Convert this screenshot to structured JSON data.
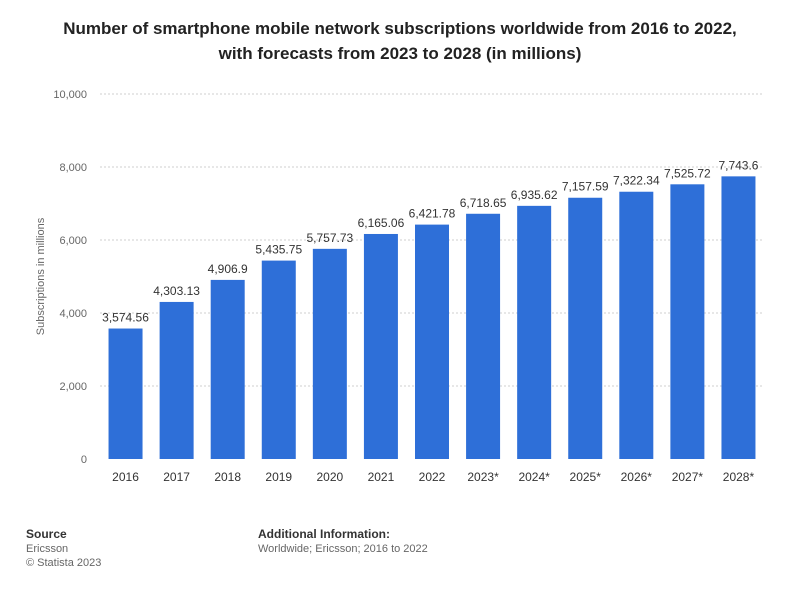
{
  "title_line1": "Number of smartphone mobile network subscriptions worldwide from 2016 to 2022,",
  "title_line2": "with forecasts from 2023 to 2028 (in millions)",
  "chart_data": {
    "type": "bar",
    "title": "Number of smartphone mobile network subscriptions worldwide from 2016 to 2022, with forecasts from 2023 to 2028 (in millions)",
    "categories": [
      "2016",
      "2017",
      "2018",
      "2019",
      "2020",
      "2021",
      "2022",
      "2023*",
      "2024*",
      "2025*",
      "2026*",
      "2027*",
      "2028*"
    ],
    "values": [
      3574.56,
      4303.13,
      4906.9,
      5435.75,
      5757.73,
      6165.06,
      6421.78,
      6718.65,
      6935.62,
      7157.59,
      7322.34,
      7525.72,
      7743.6
    ],
    "value_labels": [
      "3,574.56",
      "4,303.13",
      "4,906.9",
      "5,435.75",
      "5,757.73",
      "6,165.06",
      "6,421.78",
      "6,718.65",
      "6,935.62",
      "7,157.59",
      "7,322.34",
      "7,525.72",
      "7,743.6"
    ],
    "xlabel": "",
    "ylabel": "Subscriptions in millions",
    "ylim": [
      0,
      10000
    ],
    "yticks": [
      0,
      2000,
      4000,
      6000,
      8000,
      10000
    ],
    "ytick_labels": [
      "0",
      "2,000",
      "4,000",
      "6,000",
      "8,000",
      "10,000"
    ],
    "grid": true,
    "bar_color": "#2e6fd8"
  },
  "footer": {
    "source_heading": "Source",
    "source_name": "Ericsson",
    "copyright": "© Statista 2023",
    "additional_heading": "Additional Information:",
    "additional_text": "Worldwide; Ericsson; 2016 to 2022"
  }
}
